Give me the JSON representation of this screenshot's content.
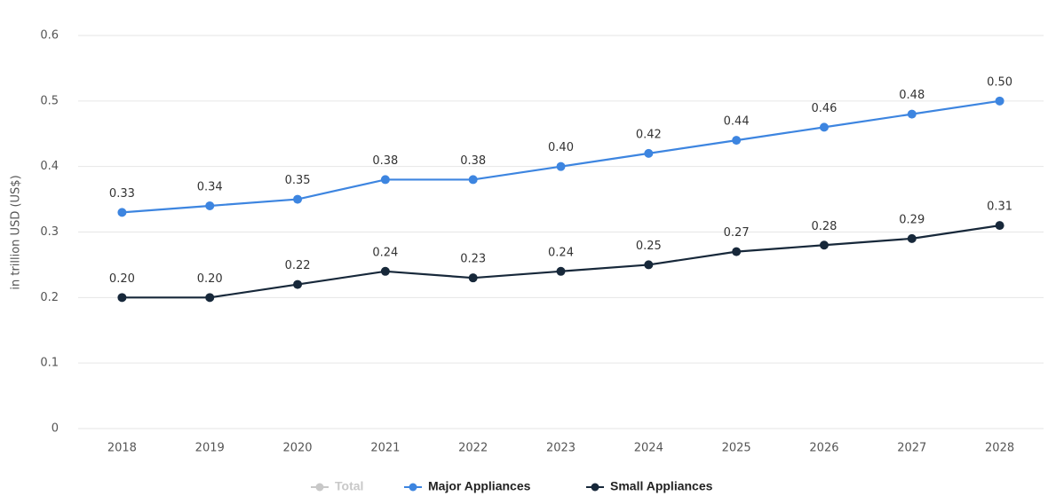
{
  "chart_data": {
    "type": "line",
    "y_label": "in trillion USD (US$)",
    "categories": [
      "2018",
      "2019",
      "2020",
      "2021",
      "2022",
      "2023",
      "2024",
      "2025",
      "2026",
      "2027",
      "2028"
    ],
    "series": [
      {
        "name": "Total",
        "color": "#c8c8c8",
        "visible": false,
        "values": [
          null,
          null,
          null,
          null,
          null,
          null,
          null,
          null,
          null,
          null,
          null
        ]
      },
      {
        "name": "Major Appliances",
        "color": "#3d85e0",
        "visible": true,
        "values": [
          0.33,
          0.34,
          0.35,
          0.38,
          0.38,
          0.4,
          0.42,
          0.44,
          0.46,
          0.48,
          0.5
        ],
        "value_labels": [
          "0.33",
          "0.34",
          "0.35",
          "0.38",
          "0.38",
          "0.40",
          "0.42",
          "0.44",
          "0.46",
          "0.48",
          "0.50"
        ]
      },
      {
        "name": "Small Appliances",
        "color": "#17283a",
        "visible": true,
        "values": [
          0.2,
          0.2,
          0.22,
          0.24,
          0.23,
          0.24,
          0.25,
          0.27,
          0.28,
          0.29,
          0.31
        ],
        "value_labels": [
          "0.20",
          "0.20",
          "0.22",
          "0.24",
          "0.23",
          "0.24",
          "0.25",
          "0.27",
          "0.28",
          "0.29",
          "0.31"
        ]
      }
    ],
    "ylim": [
      0,
      0.6
    ],
    "yticks": [
      0,
      0.1,
      0.2,
      0.3,
      0.4,
      0.5,
      0.6
    ],
    "grid": true,
    "legend": "bottom"
  }
}
